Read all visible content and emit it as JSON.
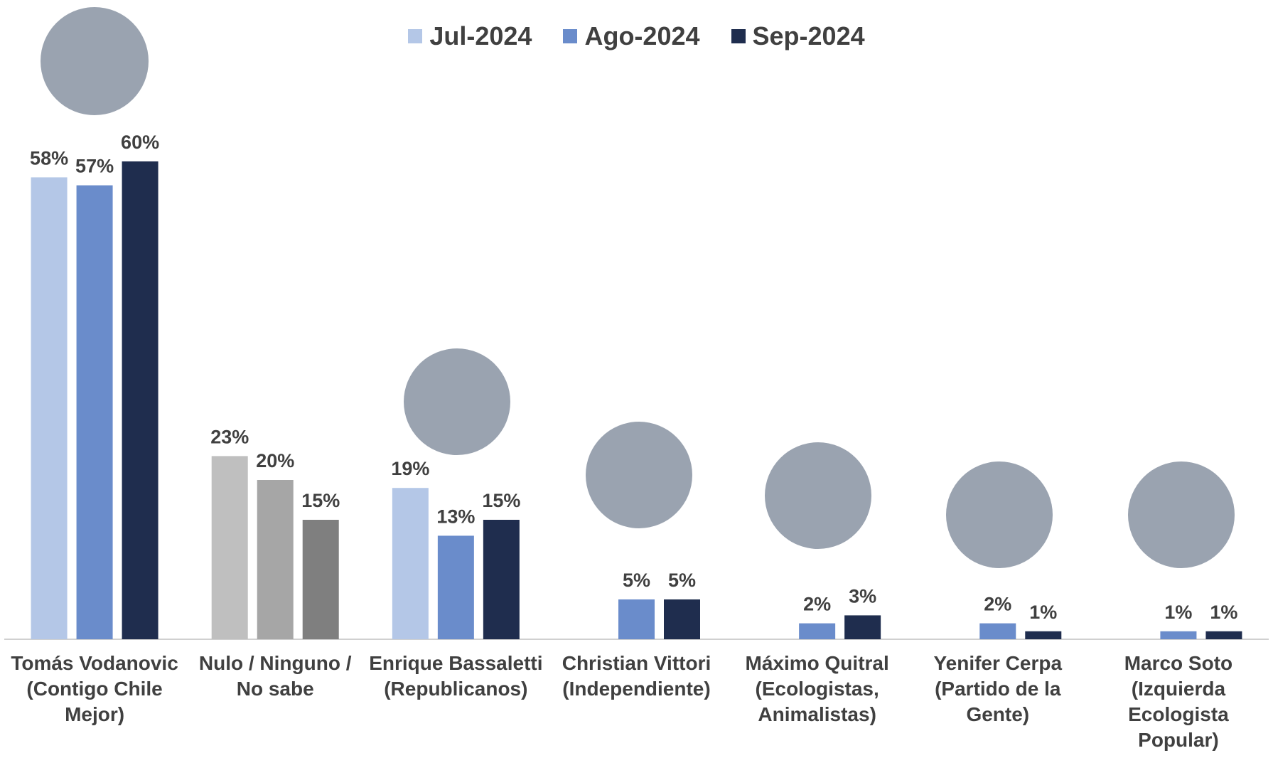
{
  "chart_data": {
    "type": "bar",
    "categories": [
      "Tomás Vodanovic (Contigo Chile Mejor)",
      "Nulo / Ninguno / No sabe",
      "Enrique Bassaletti (Republicanos)",
      "Christian Vittori (Independiente)",
      "Máximo Quitral (Ecologistas, Animalistas)",
      "Yenifer Cerpa (Partido de la Gente)",
      "Marco Soto (Izquierda Ecologista Popular)"
    ],
    "series": [
      {
        "name": "Jul-2024",
        "color": "#b4c7e7",
        "colors": [
          "#b4c7e7",
          "#bfbfbf",
          "#b4c7e7",
          "#b4c7e7",
          "#b4c7e7",
          "#b4c7e7",
          "#b4c7e7"
        ],
        "values": [
          58,
          23,
          19,
          null,
          null,
          null,
          null
        ],
        "value_labels": [
          "58%",
          "23%",
          "19%",
          null,
          null,
          null,
          null
        ]
      },
      {
        "name": "Ago-2024",
        "color": "#6a8ccb",
        "colors": [
          "#6a8ccb",
          "#a6a6a6",
          "#6a8ccb",
          "#6a8ccb",
          "#6a8ccb",
          "#6a8ccb",
          "#6a8ccb"
        ],
        "values": [
          57,
          20,
          13,
          5,
          2,
          2,
          1
        ],
        "value_labels": [
          "57%",
          "20%",
          "13%",
          "5%",
          "2%",
          "2%",
          "1%"
        ]
      },
      {
        "name": "Sep-2024",
        "color": "#1f2d4e",
        "colors": [
          "#1f2d4e",
          "#7f7f7f",
          "#1f2d4e",
          "#1f2d4e",
          "#1f2d4e",
          "#1f2d4e",
          "#1f2d4e"
        ],
        "values": [
          60,
          15,
          15,
          5,
          3,
          1,
          1
        ],
        "value_labels": [
          "60%",
          "15%",
          "15%",
          "5%",
          "3%",
          "1%",
          "1%"
        ]
      }
    ],
    "ylim": [
      0,
      60
    ],
    "legend": "top"
  }
}
